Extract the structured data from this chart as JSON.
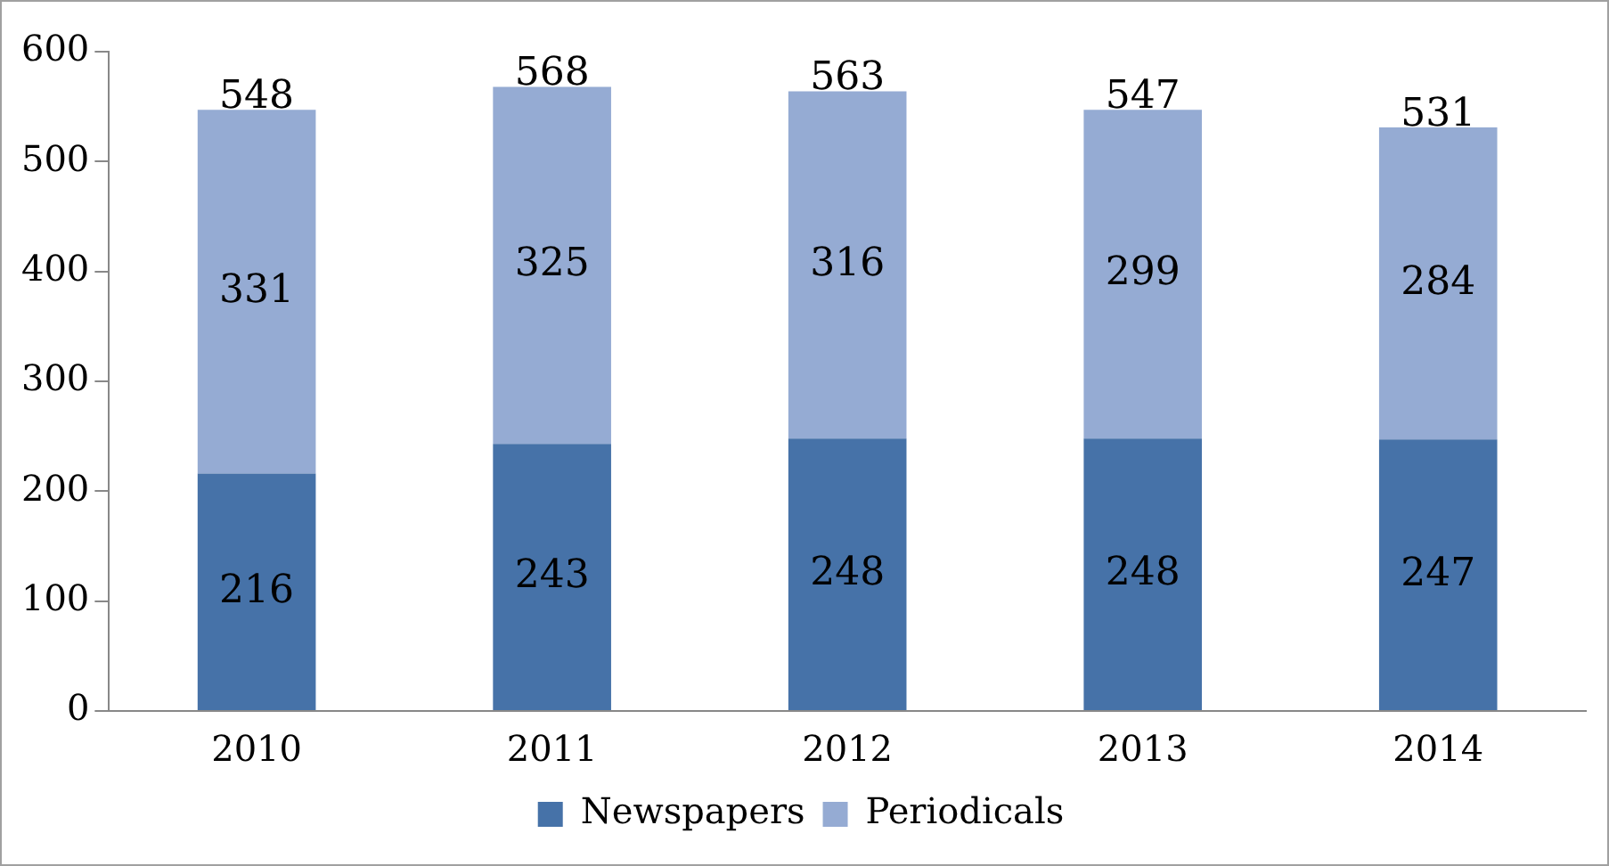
{
  "chart_data": {
    "type": "bar",
    "stacked": true,
    "categories": [
      "2010",
      "2011",
      "2012",
      "2013",
      "2014"
    ],
    "series": [
      {
        "name": "Newspapers",
        "color": "#4672a8",
        "values": [
          216,
          243,
          248,
          248,
          247
        ]
      },
      {
        "name": "Periodicals",
        "color": "#95abd3",
        "values": [
          331,
          325,
          316,
          299,
          284
        ]
      }
    ],
    "totals": [
      "548",
      "568",
      "563",
      "547",
      "531"
    ],
    "ylim": [
      0,
      600
    ],
    "yticks": [
      0,
      100,
      200,
      300,
      400,
      500,
      600
    ],
    "data_labels": true,
    "legend": "bottom"
  }
}
